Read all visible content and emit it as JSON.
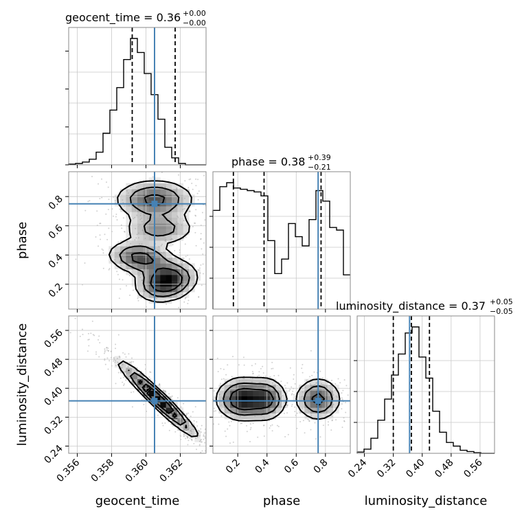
{
  "chart_data": {
    "type": "corner",
    "parameters": [
      "geocent_time",
      "phase",
      "luminosity_distance"
    ],
    "truths": {
      "geocent_time": 0.3605,
      "phase": 0.75,
      "luminosity_distance": 0.365
    },
    "truth_color": "#4682b4",
    "titles": [
      {
        "name": "geocent_time",
        "main": "geocent_time = 0.36",
        "upper": "+0.00",
        "lower": "−0.00"
      },
      {
        "name": "phase",
        "main": "phase = 0.38",
        "upper": "+0.39",
        "lower": "−0.21"
      },
      {
        "name": "luminosity_distance",
        "main": "luminosity_distance = 0.37",
        "upper": "+0.05",
        "lower": "−0.05"
      }
    ],
    "axis_labels": {
      "geocent_time": "geocent_time",
      "phase": "phase",
      "luminosity_distance": "luminosity_distance"
    },
    "ranges": {
      "geocent_time": [
        0.3555,
        0.3635
      ],
      "phase": [
        0.03,
        0.97
      ],
      "luminosity_distance": [
        0.22,
        0.6
      ]
    },
    "ticks": {
      "geocent_time": [
        "0.356",
        "0.358",
        "0.360",
        "0.362"
      ],
      "phase": [
        "0.2",
        "0.4",
        "0.6",
        "0.8"
      ],
      "luminosity_distance": [
        "0.24",
        "0.32",
        "0.40",
        "0.48",
        "0.56"
      ]
    },
    "quantiles": {
      "geocent_time": [
        0.3592,
        0.3605,
        0.3617
      ],
      "phase": [
        0.17,
        0.38,
        0.77
      ],
      "luminosity_distance": [
        0.32,
        0.37,
        0.42
      ]
    },
    "histograms": {
      "geocent_time": {
        "edges_start": 0.3555,
        "bin_width": 0.0004,
        "counts": [
          1,
          2,
          4,
          8,
          18,
          45,
          78,
          110,
          150,
          180,
          160,
          130,
          100,
          65,
          25,
          10,
          2,
          0,
          0,
          0
        ]
      },
      "phase": {
        "edges_start": 0.03,
        "bin_width": 0.047,
        "counts": [
          75,
          93,
          96,
          92,
          91,
          90,
          89,
          86,
          52,
          27,
          38,
          65,
          55,
          48,
          68,
          90,
          82,
          62,
          60,
          26
        ]
      },
      "luminosity_distance": {
        "edges_start": 0.22,
        "bin_width": 0.019,
        "counts": [
          2,
          7,
          25,
          55,
          90,
          130,
          165,
          200,
          210,
          160,
          125,
          70,
          35,
          18,
          12,
          5,
          3,
          1,
          0,
          0
        ]
      }
    },
    "grid": true,
    "grayscale_heatmaps": true
  }
}
